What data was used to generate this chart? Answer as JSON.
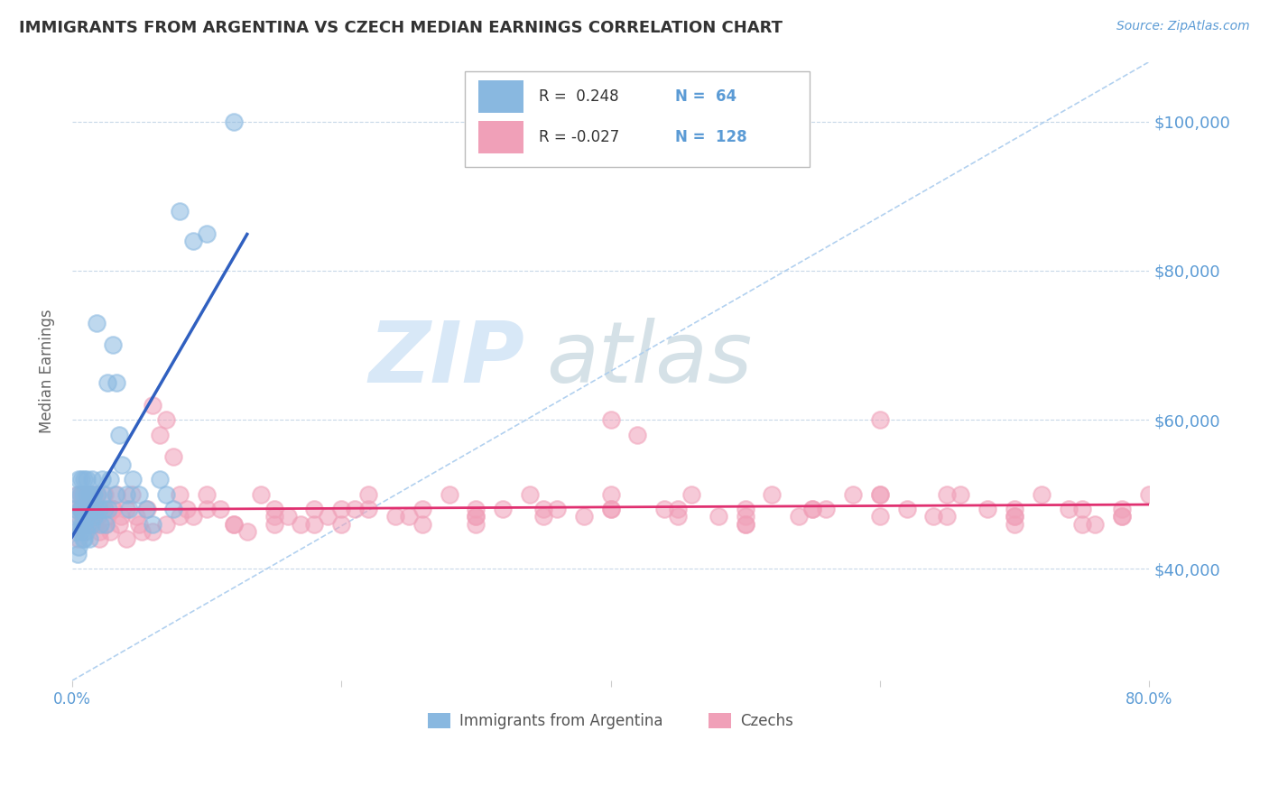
{
  "title": "IMMIGRANTS FROM ARGENTINA VS CZECH MEDIAN EARNINGS CORRELATION CHART",
  "source_text": "Source: ZipAtlas.com",
  "ylabel": "Median Earnings",
  "xlim": [
    0.0,
    0.8
  ],
  "ylim": [
    25000,
    108000
  ],
  "yticks": [
    40000,
    60000,
    80000,
    100000
  ],
  "xticks": [
    0.0,
    0.2,
    0.4,
    0.6,
    0.8
  ],
  "xtick_labels": [
    "0.0%",
    "",
    "",
    "",
    "80.0%"
  ],
  "ytick_labels": [
    "$40,000",
    "$60,000",
    "$80,000",
    "$100,000"
  ],
  "color_argentina": "#89b8e0",
  "color_czechs": "#f0a0b8",
  "color_argentina_line": "#3060c0",
  "color_czechs_line": "#e03070",
  "color_diag_line": "#aaccee",
  "color_gridline": "#c8d8e8",
  "color_axis_ticks": "#5b9bd5",
  "color_title": "#333333",
  "color_source": "#5b9bd5",
  "legend_R_argentina": "0.248",
  "legend_N_argentina": "64",
  "legend_R_czechs": "-0.027",
  "legend_N_czechs": "128",
  "legend_label_argentina": "Immigrants from Argentina",
  "legend_label_czechs": "Czechs",
  "watermark_zip": "ZIP",
  "watermark_atlas": "atlas",
  "background_color": "#ffffff",
  "argentina_x": [
    0.002,
    0.003,
    0.004,
    0.004,
    0.005,
    0.005,
    0.005,
    0.006,
    0.006,
    0.006,
    0.007,
    0.007,
    0.007,
    0.008,
    0.008,
    0.008,
    0.009,
    0.009,
    0.009,
    0.01,
    0.01,
    0.01,
    0.011,
    0.011,
    0.012,
    0.012,
    0.013,
    0.013,
    0.014,
    0.014,
    0.015,
    0.015,
    0.016,
    0.017,
    0.018,
    0.018,
    0.019,
    0.02,
    0.021,
    0.022,
    0.023,
    0.024,
    0.025,
    0.026,
    0.027,
    0.028,
    0.03,
    0.032,
    0.033,
    0.035,
    0.037,
    0.04,
    0.042,
    0.045,
    0.05,
    0.055,
    0.06,
    0.065,
    0.07,
    0.075,
    0.08,
    0.09,
    0.1,
    0.12
  ],
  "argentina_y": [
    48000,
    45000,
    50000,
    42000,
    47000,
    43000,
    52000,
    48000,
    45000,
    50000,
    46000,
    52000,
    48000,
    44000,
    50000,
    46000,
    48000,
    44000,
    52000,
    47000,
    50000,
    45000,
    48000,
    52000,
    46000,
    50000,
    48000,
    44000,
    50000,
    46000,
    48000,
    52000,
    50000,
    47000,
    48000,
    73000,
    50000,
    48000,
    46000,
    52000,
    50000,
    48000,
    46000,
    65000,
    48000,
    52000,
    70000,
    50000,
    65000,
    58000,
    54000,
    50000,
    48000,
    52000,
    50000,
    48000,
    46000,
    52000,
    50000,
    48000,
    88000,
    84000,
    85000,
    100000
  ],
  "czechs_x": [
    0.003,
    0.004,
    0.005,
    0.006,
    0.007,
    0.008,
    0.009,
    0.01,
    0.011,
    0.012,
    0.013,
    0.014,
    0.015,
    0.016,
    0.017,
    0.018,
    0.019,
    0.02,
    0.022,
    0.024,
    0.026,
    0.028,
    0.03,
    0.033,
    0.036,
    0.04,
    0.044,
    0.048,
    0.052,
    0.056,
    0.06,
    0.065,
    0.07,
    0.075,
    0.08,
    0.085,
    0.09,
    0.1,
    0.11,
    0.12,
    0.13,
    0.14,
    0.15,
    0.16,
    0.17,
    0.18,
    0.19,
    0.2,
    0.21,
    0.22,
    0.24,
    0.26,
    0.28,
    0.3,
    0.32,
    0.34,
    0.36,
    0.38,
    0.4,
    0.42,
    0.44,
    0.46,
    0.48,
    0.5,
    0.52,
    0.54,
    0.56,
    0.58,
    0.6,
    0.62,
    0.64,
    0.66,
    0.68,
    0.7,
    0.72,
    0.74,
    0.76,
    0.78,
    0.8,
    0.005,
    0.008,
    0.012,
    0.016,
    0.02,
    0.025,
    0.03,
    0.035,
    0.04,
    0.05,
    0.06,
    0.07,
    0.08,
    0.1,
    0.12,
    0.15,
    0.18,
    0.22,
    0.26,
    0.3,
    0.35,
    0.4,
    0.45,
    0.5,
    0.55,
    0.6,
    0.65,
    0.7,
    0.75,
    0.78,
    0.15,
    0.2,
    0.25,
    0.3,
    0.35,
    0.4,
    0.45,
    0.5,
    0.55,
    0.6,
    0.65,
    0.7,
    0.75,
    0.78,
    0.3,
    0.4,
    0.5,
    0.6,
    0.7
  ],
  "czechs_y": [
    48000,
    50000,
    46000,
    48000,
    50000,
    47000,
    45000,
    48000,
    50000,
    46000,
    48000,
    47000,
    50000,
    46000,
    48000,
    50000,
    47000,
    45000,
    48000,
    50000,
    47000,
    45000,
    48000,
    50000,
    47000,
    48000,
    50000,
    47000,
    45000,
    48000,
    62000,
    58000,
    60000,
    55000,
    50000,
    48000,
    47000,
    50000,
    48000,
    46000,
    45000,
    50000,
    48000,
    47000,
    46000,
    48000,
    47000,
    46000,
    48000,
    50000,
    47000,
    48000,
    50000,
    47000,
    48000,
    50000,
    48000,
    47000,
    60000,
    58000,
    48000,
    50000,
    47000,
    48000,
    50000,
    47000,
    48000,
    50000,
    60000,
    48000,
    47000,
    50000,
    48000,
    47000,
    50000,
    48000,
    46000,
    47000,
    50000,
    44000,
    46000,
    47000,
    46000,
    44000,
    46000,
    48000,
    46000,
    44000,
    46000,
    45000,
    46000,
    47000,
    48000,
    46000,
    47000,
    46000,
    48000,
    46000,
    47000,
    48000,
    50000,
    48000,
    46000,
    48000,
    50000,
    47000,
    46000,
    48000,
    47000,
    46000,
    48000,
    47000,
    48000,
    47000,
    48000,
    47000,
    46000,
    48000,
    47000,
    50000,
    47000,
    46000,
    48000,
    46000,
    48000,
    47000,
    50000,
    48000
  ]
}
